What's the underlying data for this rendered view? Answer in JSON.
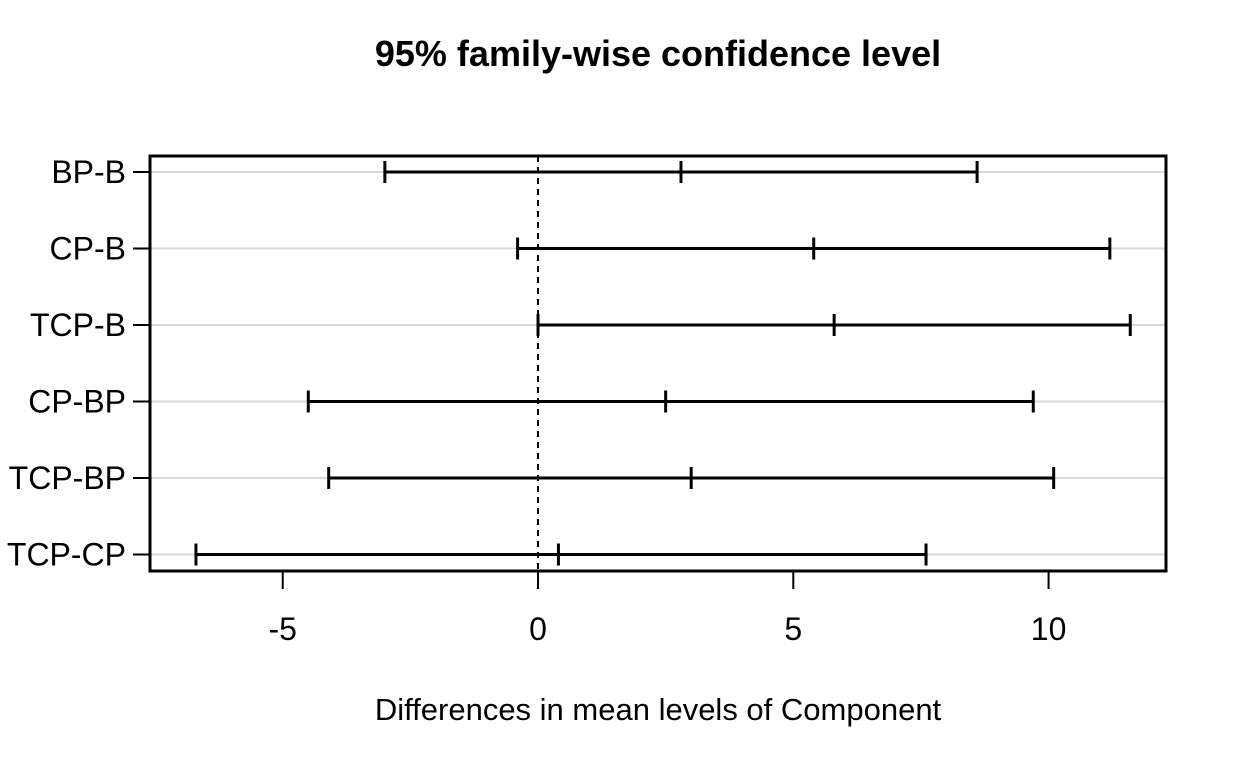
{
  "chart_data": {
    "type": "errorbar",
    "title": "95% family-wise confidence level",
    "xlabel": "Differences in mean levels of Component",
    "ylabel": "",
    "categories": [
      "BP-B",
      "CP-B",
      "TCP-B",
      "CP-BP",
      "TCP-BP",
      "TCP-CP"
    ],
    "intervals": [
      {
        "comparison": "BP-B",
        "lower": -3.0,
        "diff": 2.8,
        "upper": 8.6
      },
      {
        "comparison": "CP-B",
        "lower": -0.4,
        "diff": 5.4,
        "upper": 11.2
      },
      {
        "comparison": "TCP-B",
        "lower": 0.0,
        "diff": 5.8,
        "upper": 11.6
      },
      {
        "comparison": "CP-BP",
        "lower": -4.5,
        "diff": 2.5,
        "upper": 9.7
      },
      {
        "comparison": "TCP-BP",
        "lower": -4.1,
        "diff": 3.0,
        "upper": 10.1
      },
      {
        "comparison": "TCP-CP",
        "lower": -6.7,
        "diff": 0.4,
        "upper": 7.6
      }
    ],
    "xlim": [
      -7.6,
      12.3
    ],
    "xticks": [
      -5,
      0,
      5,
      10
    ],
    "reference_line_x": 0,
    "grid": "light horizontal gridline at each comparison row",
    "legend": "none",
    "background_color": "#ffffff",
    "line_color": "#000000",
    "gridline_color": "#d9d9d9"
  }
}
